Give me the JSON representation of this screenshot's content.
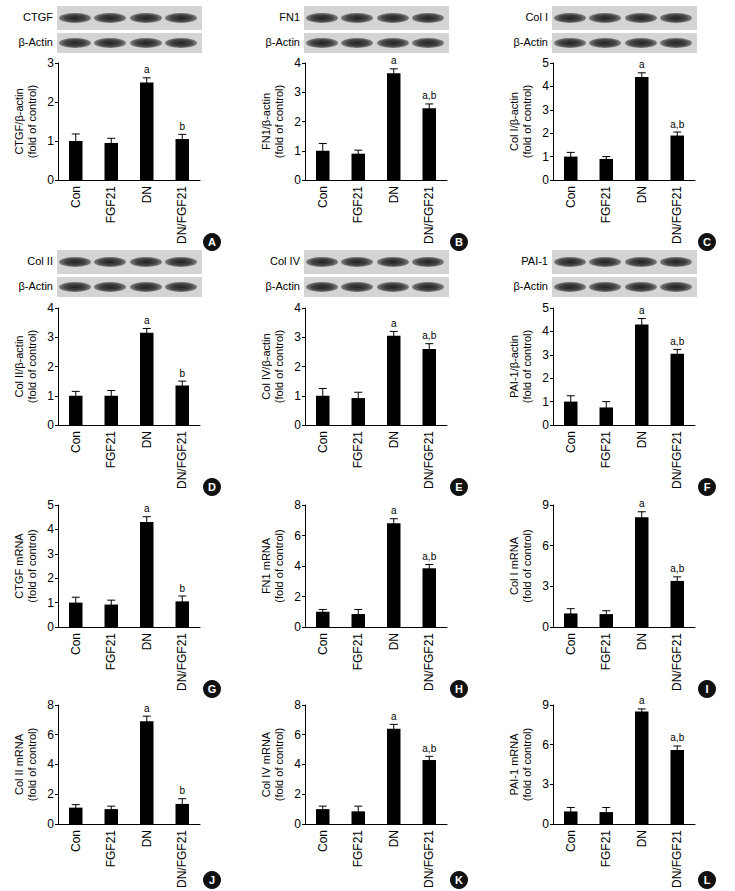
{
  "chart_data": [
    {
      "type": "bar",
      "panel": "A",
      "blot": [
        "CTGF",
        "β-Actin"
      ],
      "ylabel": [
        "CTGF/β-actin",
        "(fold of control)"
      ],
      "categories": [
        "Con",
        "FGF21",
        "DN",
        "DN/FGF21"
      ],
      "values": [
        1.0,
        0.95,
        2.5,
        1.05
      ],
      "errors": [
        0.18,
        0.12,
        0.12,
        0.12
      ],
      "annotations": [
        null,
        null,
        "a",
        "b"
      ],
      "color": "#000000",
      "ylim": [
        0,
        3
      ],
      "yticks": [
        0,
        1,
        2,
        3
      ],
      "grid": false
    },
    {
      "type": "bar",
      "panel": "B",
      "blot": [
        "FN1",
        "β-Actin"
      ],
      "ylabel": [
        "FN1/β-actin",
        "(fold of control)"
      ],
      "categories": [
        "Con",
        "FGF21",
        "DN",
        "DN/FGF21"
      ],
      "values": [
        1.0,
        0.9,
        3.65,
        2.45
      ],
      "errors": [
        0.25,
        0.12,
        0.15,
        0.15
      ],
      "annotations": [
        null,
        null,
        "a",
        "a,b"
      ],
      "color": "#000000",
      "ylim": [
        0,
        4
      ],
      "yticks": [
        0,
        1,
        2,
        3,
        4
      ],
      "grid": false
    },
    {
      "type": "bar",
      "panel": "C",
      "blot": [
        "Col I",
        "β-Actin"
      ],
      "ylabel": [
        "Col I/β-actin",
        "(fold of control)"
      ],
      "categories": [
        "Con",
        "FGF21",
        "DN",
        "DN/FGF21"
      ],
      "values": [
        1.0,
        0.9,
        4.4,
        1.9
      ],
      "errors": [
        0.18,
        0.1,
        0.18,
        0.15
      ],
      "annotations": [
        null,
        null,
        "a",
        "a,b"
      ],
      "color": "#000000",
      "ylim": [
        0,
        5
      ],
      "yticks": [
        0,
        1,
        2,
        3,
        4,
        5
      ],
      "grid": false
    },
    {
      "type": "bar",
      "panel": "D",
      "blot": [
        "Col II",
        "β-Actin"
      ],
      "ylabel": [
        "Col II/β-actin",
        "(fold of control)"
      ],
      "categories": [
        "Con",
        "FGF21",
        "DN",
        "DN/FGF21"
      ],
      "values": [
        1.0,
        1.0,
        3.15,
        1.35
      ],
      "errors": [
        0.15,
        0.18,
        0.15,
        0.15
      ],
      "annotations": [
        null,
        null,
        "a",
        "b"
      ],
      "color": "#000000",
      "ylim": [
        0,
        4
      ],
      "yticks": [
        0,
        1,
        2,
        3,
        4
      ],
      "grid": false
    },
    {
      "type": "bar",
      "panel": "E",
      "blot": [
        "Col IV",
        "β-Actin"
      ],
      "ylabel": [
        "Col IV/β-actin",
        "(fold of control)"
      ],
      "categories": [
        "Con",
        "FGF21",
        "DN",
        "DN/FGF21"
      ],
      "values": [
        1.0,
        0.92,
        3.05,
        2.6
      ],
      "errors": [
        0.25,
        0.2,
        0.15,
        0.18
      ],
      "annotations": [
        null,
        null,
        "a",
        "a,b"
      ],
      "color": "#000000",
      "ylim": [
        0,
        4
      ],
      "yticks": [
        0,
        1,
        2,
        3,
        4
      ],
      "grid": false
    },
    {
      "type": "bar",
      "panel": "F",
      "blot": [
        "PAI-1",
        "β-Actin"
      ],
      "ylabel": [
        "PAI-1/β-actin",
        "(fold of control)"
      ],
      "categories": [
        "Con",
        "FGF21",
        "DN",
        "DN/FGF21"
      ],
      "values": [
        1.0,
        0.75,
        4.3,
        3.05
      ],
      "errors": [
        0.25,
        0.25,
        0.25,
        0.18
      ],
      "annotations": [
        null,
        null,
        "a",
        "a,b"
      ],
      "color": "#000000",
      "ylim": [
        0,
        5
      ],
      "yticks": [
        0,
        1,
        2,
        3,
        4,
        5
      ],
      "grid": false
    },
    {
      "type": "bar",
      "panel": "G",
      "ylabel": [
        "CTGF mRNA",
        "(fold of control)"
      ],
      "categories": [
        "Con",
        "FGF21",
        "DN",
        "DN/FGF21"
      ],
      "values": [
        1.0,
        0.92,
        4.3,
        1.05
      ],
      "errors": [
        0.22,
        0.18,
        0.22,
        0.22
      ],
      "annotations": [
        null,
        null,
        "a",
        "b"
      ],
      "color": "#000000",
      "ylim": [
        0,
        5
      ],
      "yticks": [
        0,
        1,
        2,
        3,
        4,
        5
      ],
      "grid": false
    },
    {
      "type": "bar",
      "panel": "H",
      "ylabel": [
        "FN1 mRNA",
        "(fold of control)"
      ],
      "categories": [
        "Con",
        "FGF21",
        "DN",
        "DN/FGF21"
      ],
      "values": [
        1.0,
        0.85,
        6.8,
        3.85
      ],
      "errors": [
        0.15,
        0.3,
        0.3,
        0.25
      ],
      "annotations": [
        null,
        null,
        "a",
        "a,b"
      ],
      "color": "#000000",
      "ylim": [
        0,
        8
      ],
      "yticks": [
        0,
        2,
        4,
        6,
        8
      ],
      "grid": false
    },
    {
      "type": "bar",
      "panel": "I",
      "ylabel": [
        "Col I mRNA",
        "(fold of control)"
      ],
      "categories": [
        "Con",
        "FGF21",
        "DN",
        "DN/FGF21"
      ],
      "values": [
        1.0,
        0.95,
        8.1,
        3.4
      ],
      "errors": [
        0.35,
        0.25,
        0.4,
        0.3
      ],
      "annotations": [
        null,
        null,
        "a",
        "a,b"
      ],
      "color": "#000000",
      "ylim": [
        0,
        9
      ],
      "yticks": [
        0,
        3,
        6,
        9
      ],
      "grid": false
    },
    {
      "type": "bar",
      "panel": "J",
      "ylabel": [
        "Col II mRNA",
        "(fold of control)"
      ],
      "categories": [
        "Con",
        "FGF21",
        "DN",
        "DN/FGF21"
      ],
      "values": [
        1.1,
        1.0,
        6.9,
        1.35
      ],
      "errors": [
        0.2,
        0.2,
        0.35,
        0.35
      ],
      "annotations": [
        null,
        null,
        "a",
        "b"
      ],
      "color": "#000000",
      "ylim": [
        0,
        8
      ],
      "yticks": [
        0,
        2,
        4,
        6,
        8
      ],
      "grid": false
    },
    {
      "type": "bar",
      "panel": "K",
      "ylabel": [
        "Col IV mRNA",
        "(fold of control)"
      ],
      "categories": [
        "Con",
        "FGF21",
        "DN",
        "DN/FGF21"
      ],
      "values": [
        1.0,
        0.85,
        6.4,
        4.3
      ],
      "errors": [
        0.2,
        0.35,
        0.3,
        0.25
      ],
      "annotations": [
        null,
        null,
        "a",
        "a,b"
      ],
      "color": "#000000",
      "ylim": [
        0,
        8
      ],
      "yticks": [
        0,
        2,
        4,
        6,
        8
      ],
      "grid": false
    },
    {
      "type": "bar",
      "panel": "L",
      "ylabel": [
        "PAI-1 mRNA",
        "(fold of control)"
      ],
      "categories": [
        "Con",
        "FGF21",
        "DN",
        "DN/FGF21"
      ],
      "values": [
        0.95,
        0.9,
        8.5,
        5.6
      ],
      "errors": [
        0.3,
        0.35,
        0.2,
        0.3
      ],
      "annotations": [
        null,
        null,
        "a",
        "a,b"
      ],
      "color": "#000000",
      "ylim": [
        0,
        9
      ],
      "yticks": [
        0,
        3,
        6,
        9
      ],
      "grid": false
    }
  ]
}
